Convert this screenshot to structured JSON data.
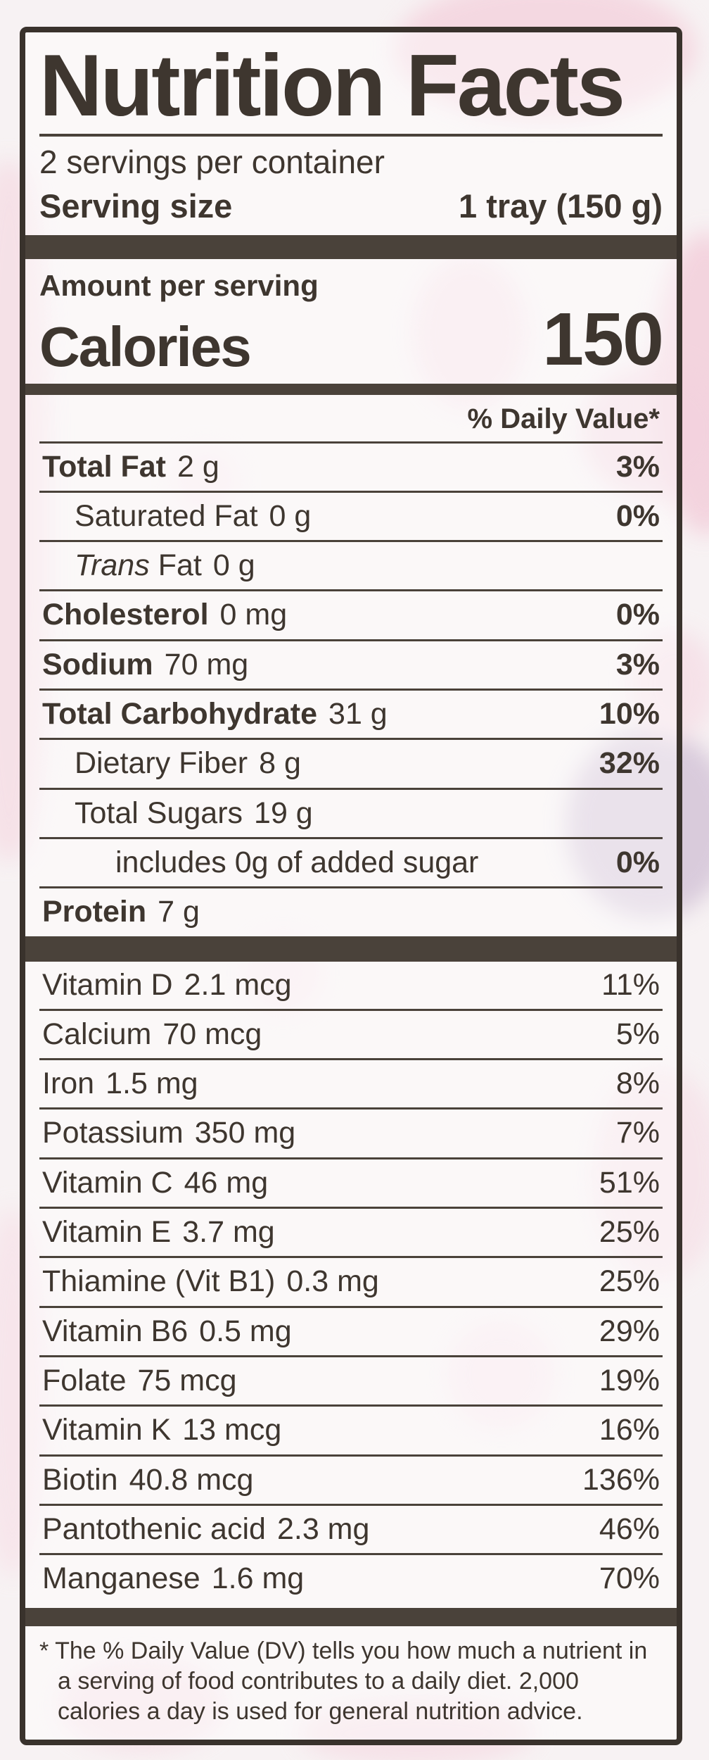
{
  "colors": {
    "text": "#3e362f",
    "rules_and_bars": "#4a423a",
    "label_background": "#f7f2f3",
    "stain_pink": "#f3cfdb",
    "stain_mauve": "#cfbed4"
  },
  "label": {
    "title": "Nutrition Facts",
    "servings_per_container": "2 servings per container",
    "serving_size_label": "Serving size",
    "serving_size_value": "1 tray (150 g)",
    "amount_per_serving": "Amount per serving",
    "calories_label": "Calories",
    "calories_value": "150",
    "daily_value_header": "% Daily Value*",
    "nutrients": [
      {
        "name": "Total Fat",
        "amount": "2 g",
        "dv": "3%",
        "bold": true,
        "indent": 0
      },
      {
        "name": "Saturated Fat",
        "amount": "0 g",
        "dv": "0%",
        "indent": 1
      },
      {
        "italic_prefix": "Trans",
        "name": "Fat",
        "amount": "0 g",
        "dv": "",
        "indent": 1
      },
      {
        "name": "Cholesterol",
        "amount": "0 mg",
        "dv": "0%",
        "bold": true,
        "indent": 0
      },
      {
        "name": "Sodium",
        "amount": "70 mg",
        "dv": "3%",
        "bold": true,
        "indent": 0
      },
      {
        "name": "Total Carbohydrate",
        "amount": "31 g",
        "dv": "10%",
        "bold": true,
        "indent": 0
      },
      {
        "name": "Dietary Fiber",
        "amount": "8 g",
        "dv": "32%",
        "indent": 1
      },
      {
        "name": "Total Sugars",
        "amount": "19 g",
        "dv": "",
        "indent": 1
      },
      {
        "name": "includes 0g of added sugar",
        "amount": "",
        "dv": "0%",
        "indent": 2
      },
      {
        "name": "Protein",
        "amount": "7 g",
        "dv": "",
        "bold": true,
        "indent": 0
      }
    ],
    "vitamins": [
      {
        "name": "Vitamin D",
        "amount": "2.1 mcg",
        "dv": "11%"
      },
      {
        "name": "Calcium",
        "amount": "70 mcg",
        "dv": "5%"
      },
      {
        "name": "Iron",
        "amount": "1.5 mg",
        "dv": "8%"
      },
      {
        "name": "Potassium",
        "amount": "350 mg",
        "dv": "7%"
      },
      {
        "name": "Vitamin C",
        "amount": "46 mg",
        "dv": "51%"
      },
      {
        "name": "Vitamin E",
        "amount": "3.7 mg",
        "dv": "25%"
      },
      {
        "name": "Thiamine (Vit B1)",
        "amount": "0.3 mg",
        "dv": "25%"
      },
      {
        "name": "Vitamin B6",
        "amount": "0.5 mg",
        "dv": "29%"
      },
      {
        "name": "Folate",
        "amount": "75 mcg",
        "dv": "19%"
      },
      {
        "name": "Vitamin K",
        "amount": "13 mcg",
        "dv": "16%"
      },
      {
        "name": "Biotin",
        "amount": "40.8 mcg",
        "dv": "136%"
      },
      {
        "name": "Pantothenic acid",
        "amount": "2.3 mg",
        "dv": "46%"
      },
      {
        "name": "Manganese",
        "amount": "1.6 mg",
        "dv": "70%"
      }
    ],
    "footnote": "* The % Daily Value (DV) tells you how much a nutrient in a serving of food contributes to a daily diet. 2,000 calories a day is used for general nutrition advice."
  }
}
